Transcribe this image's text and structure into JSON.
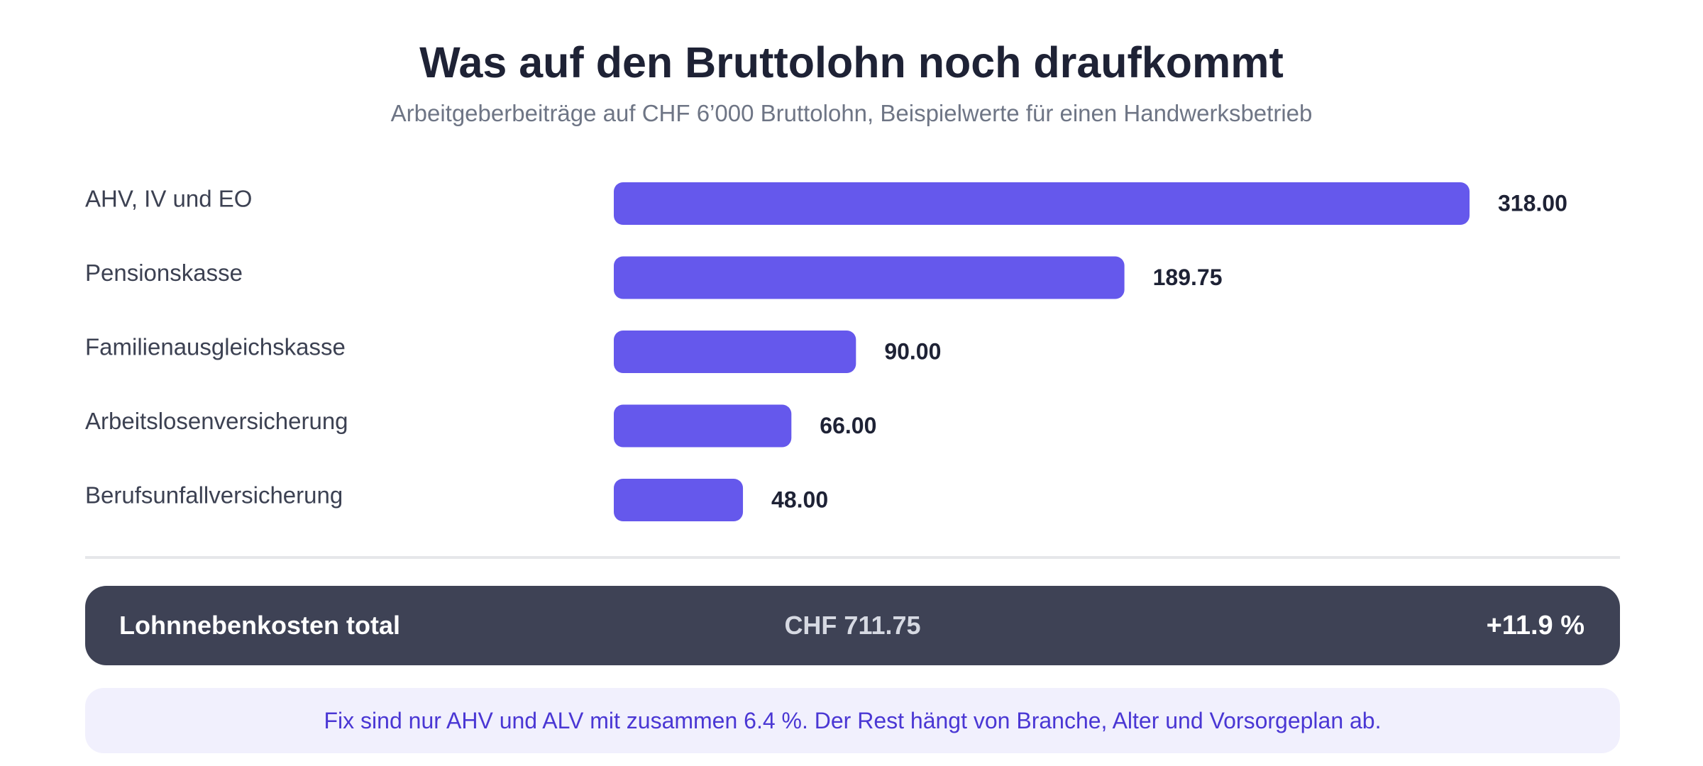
{
  "header": {
    "title": "Was auf den Bruttolohn noch draufkommt",
    "subtitle": "Arbeitgeberbeiträge auf CHF 6’000 Bruttolohn, Beispielwerte für einen Handwerksbetrieb"
  },
  "chart_data": {
    "type": "bar",
    "orientation": "horizontal",
    "categories": [
      "AHV, IV und EO",
      "Pensionskasse",
      "Familienausgleichskasse",
      "Arbeitslosenversicherung",
      "Berufsunfallversicherung"
    ],
    "values": [
      318.0,
      189.75,
      90.0,
      66.0,
      48.0
    ],
    "value_labels": [
      "318.00",
      "189.75",
      "90.00",
      "66.00",
      "48.00"
    ],
    "bar_color": "#6558ec",
    "xlim": [
      0,
      318
    ]
  },
  "summary": {
    "label": "Lohnnebenkosten total",
    "amount": "CHF 711.75",
    "percent": "+11.9 %"
  },
  "note": {
    "text": "Fix sind nur AHV und ALV mit zusammen 6.4 %. Der Rest hängt von Branche, Alter und Vorsorgeplan ab."
  },
  "colors": {
    "title": "#1e2235",
    "subtitle": "#6e7585",
    "summary_bg": "#3e4255",
    "note_bg": "#f1f0fd",
    "note_text": "#4a37d4"
  }
}
